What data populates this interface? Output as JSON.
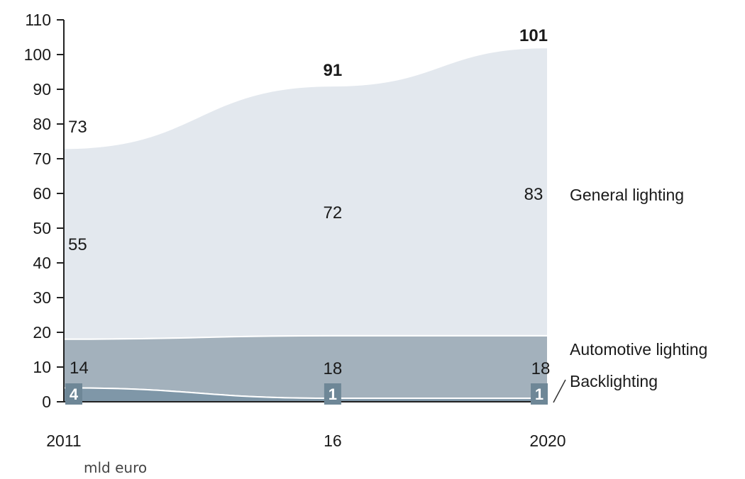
{
  "chart_data": {
    "type": "area",
    "stacked": true,
    "x": [
      "2011",
      "16",
      "2020"
    ],
    "x_numeric": [
      2011,
      2016,
      2020
    ],
    "ylim": [
      0,
      110
    ],
    "yticks": [
      "0",
      "10",
      "20",
      "30",
      "40",
      "50",
      "60",
      "70",
      "80",
      "90",
      "100",
      "110"
    ],
    "ylabel": "",
    "xlabel": "",
    "unit_label": "mld euro",
    "series": [
      {
        "name": "Backlighting",
        "values": [
          4,
          1,
          1
        ],
        "value_labels": [
          "4",
          "1",
          "1"
        ],
        "color": "#7f97a8"
      },
      {
        "name": "Automotive lighting",
        "values": [
          14,
          18,
          18
        ],
        "value_labels": [
          "14",
          "18",
          "18"
        ],
        "color": "#a3b1bc"
      },
      {
        "name": "General lighting",
        "values": [
          55,
          72,
          83
        ],
        "value_labels": [
          "55",
          "72",
          "83"
        ],
        "color": "#e3e8ee"
      }
    ],
    "totals": [
      73,
      91,
      101
    ],
    "total_labels": [
      "73",
      "91",
      "101"
    ]
  }
}
